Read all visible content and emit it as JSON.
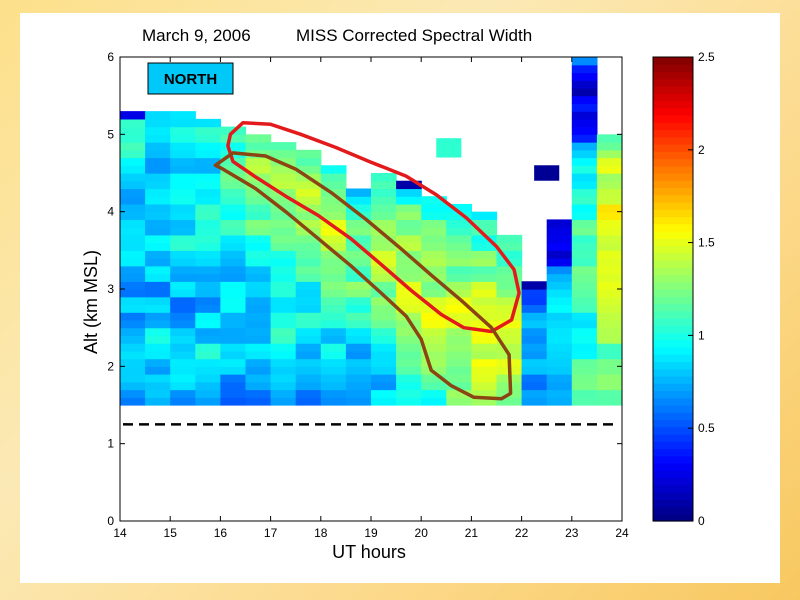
{
  "chart_data": {
    "type": "heatmap",
    "title_date": "March 9, 2006",
    "title_text": "MISS Corrected Spectral Width",
    "xlabel": "UT hours",
    "ylabel": "Alt (km MSL)",
    "xlim": [
      14,
      24
    ],
    "ylim": [
      0,
      6
    ],
    "xticks": [
      "14",
      "15",
      "16",
      "17",
      "18",
      "19",
      "20",
      "21",
      "22",
      "23",
      "24"
    ],
    "yticks": [
      "0",
      "1",
      "2",
      "3",
      "4",
      "5",
      "6"
    ],
    "annotation": "NORTH",
    "colorbar": {
      "range": [
        0,
        2.5
      ],
      "ticks": [
        "0",
        "0.5",
        "1",
        "1.5",
        "2",
        "2.5"
      ],
      "colormap": "jet"
    },
    "dashed_line_altitude_km": 1.25,
    "data_bottom_km": 1.5,
    "time_bin_hours": 0.5,
    "altitude_bin_km": 0.1,
    "columns": [
      {
        "t": 14.0,
        "top": 5.3,
        "base": 0.65,
        "profile": [
          [
            1.5,
            0.1
          ],
          [
            2.0,
            0.35
          ],
          [
            2.8,
            0.05
          ],
          [
            3.6,
            0.15
          ],
          [
            4.2,
            0.1
          ],
          [
            5.0,
            0.35
          ],
          [
            5.35,
            0.3
          ]
        ],
        "top_value": 0.25
      },
      {
        "t": 14.5,
        "top": 5.35,
        "base": 0.6,
        "profile": [
          [
            1.5,
            0.0
          ],
          [
            2.2,
            0.35
          ],
          [
            3.0,
            0.1
          ],
          [
            3.8,
            0.3
          ],
          [
            4.6,
            0.2
          ],
          [
            5.4,
            0.3
          ]
        ],
        "top_value": 0.85
      },
      {
        "t": 15.0,
        "top": 5.25,
        "base": 0.65,
        "profile": [
          [
            1.5,
            0.1
          ],
          [
            2.0,
            0.3
          ],
          [
            2.8,
            0.05
          ],
          [
            3.5,
            0.25
          ],
          [
            4.4,
            0.15
          ],
          [
            5.3,
            0.3
          ]
        ]
      },
      {
        "t": 15.5,
        "top": 5.15,
        "base": 0.65,
        "profile": [
          [
            1.5,
            0.0
          ],
          [
            2.0,
            0.3
          ],
          [
            3.0,
            0.1
          ],
          [
            3.7,
            0.3
          ],
          [
            4.6,
            0.2
          ],
          [
            5.2,
            0.3
          ]
        ]
      },
      {
        "t": 16.0,
        "top": 5.1,
        "base": 0.6,
        "profile": [
          [
            1.5,
            -0.05
          ],
          [
            2.3,
            0.25
          ],
          [
            3.2,
            0.25
          ],
          [
            4.0,
            0.45
          ],
          [
            4.5,
            0.6
          ],
          [
            5.1,
            0.3
          ]
        ]
      },
      {
        "t": 16.5,
        "top": 5.0,
        "base": 0.6,
        "profile": [
          [
            1.5,
            -0.05
          ],
          [
            2.3,
            0.2
          ],
          [
            3.2,
            0.3
          ],
          [
            4.0,
            0.55
          ],
          [
            4.6,
            0.75
          ],
          [
            5.0,
            0.4
          ]
        ]
      },
      {
        "t": 17.0,
        "top": 4.9,
        "base": 0.65,
        "profile": [
          [
            1.5,
            0.0
          ],
          [
            2.4,
            0.3
          ],
          [
            3.2,
            0.3
          ],
          [
            3.9,
            0.6
          ],
          [
            4.4,
            0.75
          ],
          [
            4.9,
            0.4
          ]
        ]
      },
      {
        "t": 17.5,
        "top": 4.8,
        "base": 0.65,
        "profile": [
          [
            1.5,
            0.0
          ],
          [
            2.4,
            0.25
          ],
          [
            3.1,
            0.35
          ],
          [
            3.8,
            0.65
          ],
          [
            4.25,
            0.95
          ],
          [
            4.8,
            0.5
          ]
        ]
      },
      {
        "t": 18.0,
        "top": 4.6,
        "base": 0.65,
        "profile": [
          [
            1.5,
            0.05
          ],
          [
            2.5,
            0.3
          ],
          [
            3.2,
            0.55
          ],
          [
            3.7,
            0.75
          ],
          [
            4.2,
            0.6
          ],
          [
            4.6,
            0.45
          ]
        ]
      },
      {
        "t": 18.5,
        "top": 4.3,
        "base": 0.6,
        "profile": [
          [
            1.5,
            0.05
          ],
          [
            2.5,
            0.3
          ],
          [
            3.0,
            0.55
          ],
          [
            3.5,
            0.7
          ],
          [
            4.0,
            0.55
          ],
          [
            4.3,
            0.3
          ]
        ],
        "top_value": 0.75
      },
      {
        "t": 19.0,
        "top": 4.5,
        "base": 0.65,
        "profile": [
          [
            1.5,
            0.1
          ],
          [
            2.4,
            0.35
          ],
          [
            2.9,
            0.6
          ],
          [
            3.3,
            0.75
          ],
          [
            4.0,
            0.65
          ],
          [
            4.5,
            0.4
          ]
        ]
      },
      {
        "t": 19.5,
        "top": 4.4,
        "base": 0.65,
        "profile": [
          [
            1.5,
            0.2
          ],
          [
            2.3,
            0.5
          ],
          [
            2.8,
            0.75
          ],
          [
            3.3,
            0.7
          ],
          [
            4.0,
            0.55
          ],
          [
            4.4,
            0.2
          ]
        ],
        "top_value": 0.1
      },
      {
        "t": 20.0,
        "top": 4.2,
        "base": 0.7,
        "profile": [
          [
            1.5,
            0.3
          ],
          [
            2.2,
            0.6
          ],
          [
            2.7,
            0.75
          ],
          [
            3.2,
            0.6
          ],
          [
            3.8,
            0.45
          ],
          [
            4.2,
            0.35
          ]
        ]
      },
      {
        "t": 20.5,
        "top": 4.1,
        "base": 0.7,
        "profile": [
          [
            1.5,
            0.4
          ],
          [
            2.2,
            0.7
          ],
          [
            2.6,
            0.8
          ],
          [
            3.1,
            0.6
          ],
          [
            3.7,
            0.35
          ],
          [
            4.1,
            0.2
          ]
        ]
      },
      {
        "t": 21.0,
        "top": 4.05,
        "base": 0.75,
        "profile": [
          [
            1.5,
            0.45
          ],
          [
            2.0,
            0.7
          ],
          [
            2.5,
            0.85
          ],
          [
            3.0,
            0.6
          ],
          [
            3.6,
            0.3
          ],
          [
            4.05,
            0.25
          ]
        ]
      },
      {
        "t": 21.5,
        "top": 3.7,
        "base": 0.7,
        "profile": [
          [
            1.5,
            0.5
          ],
          [
            2.0,
            0.75
          ],
          [
            2.5,
            0.8
          ],
          [
            3.0,
            0.5
          ],
          [
            3.7,
            0.3
          ]
        ]
      },
      {
        "t": 22.0,
        "top": 3.15,
        "base": 0.35,
        "profile": [
          [
            1.5,
            0.2
          ],
          [
            2.2,
            0.35
          ],
          [
            2.6,
            0.45
          ],
          [
            3.0,
            0.0
          ],
          [
            3.15,
            -0.3
          ]
        ],
        "top_value": 0.1
      },
      {
        "t": 22.5,
        "top": 3.9,
        "base": 0.45,
        "profile": [
          [
            1.5,
            0.3
          ],
          [
            2.4,
            0.45
          ],
          [
            3.0,
            0.3
          ],
          [
            3.5,
            -0.2
          ],
          [
            3.9,
            -0.35
          ]
        ]
      },
      {
        "t": 23.0,
        "top": 6.0,
        "base": 0.9,
        "profile": [
          [
            1.5,
            0.2
          ],
          [
            2.5,
            0.1
          ],
          [
            3.5,
            0.3
          ],
          [
            4.5,
            0.0
          ],
          [
            5.0,
            -0.4
          ],
          [
            5.5,
            -0.7
          ],
          [
            6.0,
            -0.3
          ]
        ]
      },
      {
        "t": 23.5,
        "top": 4.95,
        "base": 1.05,
        "profile": [
          [
            1.5,
            0.15
          ],
          [
            2.5,
            0.2
          ],
          [
            3.3,
            0.35
          ],
          [
            4.2,
            0.5
          ],
          [
            4.7,
            0.35
          ],
          [
            4.95,
            0.0
          ]
        ]
      }
    ],
    "isolated_cells": [
      {
        "t": 20.3,
        "bottom": 4.7,
        "top": 4.95,
        "value": 1.05
      },
      {
        "t": 22.25,
        "bottom": 4.4,
        "top": 4.6,
        "value": 0.05
      }
    ],
    "outlines": [
      {
        "name": "red contour",
        "color": "#e31a1c",
        "points": [
          [
            16.2,
            5.0
          ],
          [
            16.45,
            5.15
          ],
          [
            17.0,
            5.13
          ],
          [
            17.6,
            5.0
          ],
          [
            18.3,
            4.83
          ],
          [
            19.0,
            4.64
          ],
          [
            19.7,
            4.46
          ],
          [
            20.3,
            4.22
          ],
          [
            20.9,
            3.92
          ],
          [
            21.5,
            3.55
          ],
          [
            21.85,
            3.25
          ],
          [
            21.95,
            2.95
          ],
          [
            21.8,
            2.6
          ],
          [
            21.4,
            2.45
          ],
          [
            20.85,
            2.5
          ],
          [
            20.4,
            2.67
          ],
          [
            19.8,
            2.98
          ],
          [
            19.2,
            3.32
          ],
          [
            18.6,
            3.65
          ],
          [
            17.95,
            3.95
          ],
          [
            17.3,
            4.2
          ],
          [
            16.7,
            4.45
          ],
          [
            16.25,
            4.65
          ],
          [
            16.15,
            4.85
          ],
          [
            16.2,
            5.0
          ]
        ]
      },
      {
        "name": "brown contour",
        "color": "#8b4513",
        "points": [
          [
            15.9,
            4.6
          ],
          [
            16.25,
            4.76
          ],
          [
            16.9,
            4.72
          ],
          [
            17.5,
            4.55
          ],
          [
            18.2,
            4.25
          ],
          [
            18.9,
            3.9
          ],
          [
            19.6,
            3.52
          ],
          [
            20.2,
            3.18
          ],
          [
            20.8,
            2.85
          ],
          [
            21.4,
            2.5
          ],
          [
            21.75,
            2.15
          ],
          [
            21.78,
            1.65
          ],
          [
            21.6,
            1.58
          ],
          [
            21.05,
            1.6
          ],
          [
            20.6,
            1.75
          ],
          [
            20.2,
            1.95
          ],
          [
            20.0,
            2.35
          ],
          [
            19.7,
            2.65
          ],
          [
            19.2,
            2.95
          ],
          [
            18.6,
            3.3
          ],
          [
            17.95,
            3.65
          ],
          [
            17.3,
            4.0
          ],
          [
            16.7,
            4.3
          ],
          [
            16.05,
            4.55
          ],
          [
            15.9,
            4.6
          ]
        ]
      }
    ]
  }
}
